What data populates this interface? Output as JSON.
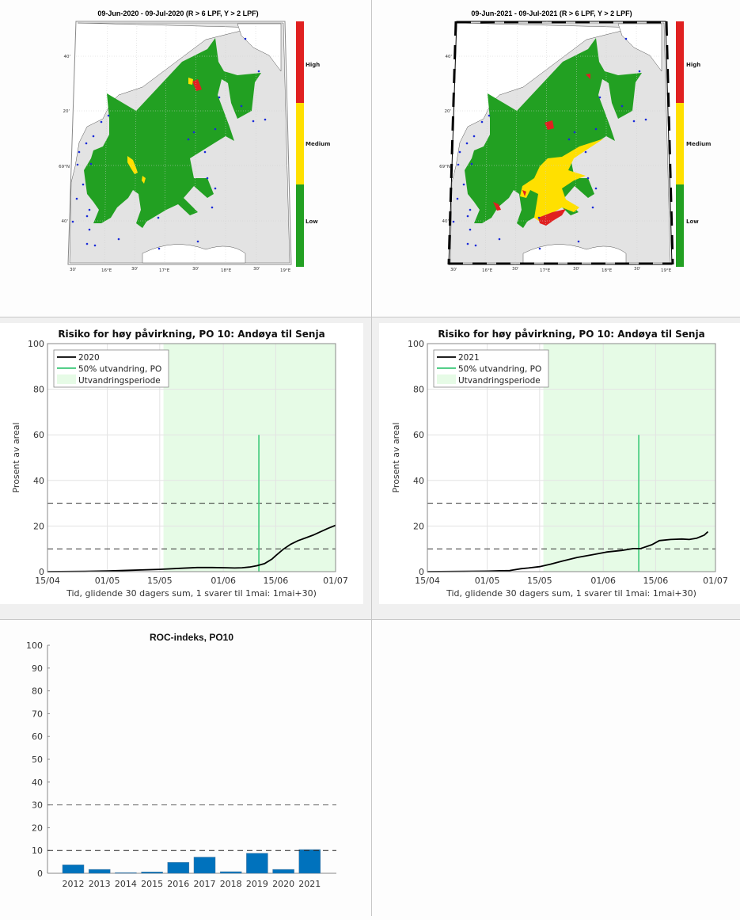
{
  "maps": [
    {
      "title": "09-Jun-2020  - 09-Jul-2020  (R > 6 LPF, Y > 2 LPF)",
      "colorbar": {
        "labels": [
          "High",
          "Medium",
          "Low"
        ],
        "colors": [
          "#e02020",
          "#ffe000",
          "#22a022"
        ]
      },
      "lon_ticks": [
        "30'",
        "16°E",
        "30'",
        "17°E",
        "30'",
        "18°E",
        "30'",
        "19°E"
      ],
      "lat_ticks": [
        "40'",
        "20'",
        "69°N",
        "40'"
      ],
      "frame_style": "thin"
    },
    {
      "title": "09-Jun-2021  - 09-Jul-2021  (R > 6 LPF, Y > 2 LPF)",
      "colorbar": {
        "labels": [
          "High",
          "Medium",
          "Low"
        ],
        "colors": [
          "#e02020",
          "#ffe000",
          "#22a022"
        ]
      },
      "lon_ticks": [
        "30'",
        "16°E",
        "30'",
        "17°E",
        "30'",
        "18°E",
        "30'",
        "19°E"
      ],
      "lat_ticks": [
        "40'",
        "20'",
        "69°N",
        "40'"
      ],
      "frame_style": "checkered"
    }
  ],
  "chart_data": [
    {
      "type": "line",
      "title": "Risiko for høy påvirkning, PO 10: Andøya til Senja",
      "xlabel": "Tid, glidende 30 dagers sum, 1 svarer til 1mai: 1mai+30)",
      "ylabel": "Prosent av areal",
      "ylim": [
        0,
        100
      ],
      "yticks": [
        "0",
        "20",
        "40",
        "60",
        "80",
        "100"
      ],
      "xticks": [
        "15/04",
        "01/05",
        "15/05",
        "01/06",
        "15/06",
        "01/07"
      ],
      "legend": [
        "2020",
        "50% utvandring, PO",
        "Utvandringsperiode"
      ],
      "grid": true,
      "series": [
        {
          "name": "2020",
          "color": "#000000",
          "x": [
            0,
            10,
            16,
            22,
            30,
            36,
            40,
            44,
            48,
            50,
            52,
            54,
            56,
            58,
            60,
            61,
            63,
            65,
            67,
            69,
            71,
            73,
            75,
            77
          ],
          "y": [
            0,
            0.1,
            0.3,
            0.6,
            1.0,
            1.5,
            1.8,
            1.8,
            1.7,
            1.6,
            1.7,
            2.0,
            2.6,
            3.5,
            5.5,
            7.0,
            9.8,
            12.0,
            13.6,
            14.8,
            16.0,
            17.5,
            19.0,
            20.3
          ]
        }
      ],
      "vertical_line": {
        "name": "50% utvandring, PO",
        "x_day": 56.5,
        "y_top": 60,
        "color": "#3cc878"
      },
      "shaded_region": {
        "name": "Utvandringsperiode",
        "x_start_day": 31,
        "x_end_day": 77,
        "color": "#e6fbe6"
      },
      "hlines": [
        10,
        30
      ]
    },
    {
      "type": "line",
      "title": "Risiko for høy påvirkning, PO 10: Andøya til Senja",
      "xlabel": "Tid, glidende 30 dagers sum, 1 svarer til 1mai: 1mai+30)",
      "ylabel": "Prosent av areal",
      "ylim": [
        0,
        100
      ],
      "yticks": [
        "0",
        "20",
        "40",
        "60",
        "80",
        "100"
      ],
      "xticks": [
        "15/04",
        "01/05",
        "15/05",
        "01/06",
        "15/06",
        "01/07"
      ],
      "legend": [
        "2021",
        "50% utvandring, PO",
        "Utvandringsperiode"
      ],
      "grid": true,
      "series": [
        {
          "name": "2021",
          "color": "#000000",
          "x": [
            0,
            10,
            16,
            22,
            25,
            27,
            30,
            33,
            36,
            40,
            44,
            48,
            52,
            55,
            57,
            60,
            62,
            65,
            68,
            70,
            72,
            74,
            75
          ],
          "y": [
            0,
            0.1,
            0.2,
            0.5,
            1.3,
            1.6,
            2.2,
            3.3,
            4.6,
            6.2,
            7.4,
            8.6,
            9.3,
            10.1,
            10.1,
            11.8,
            13.6,
            14.1,
            14.3,
            14.1,
            14.7,
            16.0,
            17.5
          ]
        }
      ],
      "vertical_line": {
        "name": "50% utvandring, PO",
        "x_day": 56.5,
        "y_top": 60,
        "color": "#3cc878"
      },
      "shaded_region": {
        "name": "Utvandringsperiode",
        "x_start_day": 31,
        "x_end_day": 77,
        "color": "#e6fbe6"
      },
      "hlines": [
        10,
        30
      ]
    },
    {
      "type": "bar",
      "title": "ROC-indeks, PO10",
      "categories": [
        "2012",
        "2013",
        "2014",
        "2015",
        "2016",
        "2017",
        "2018",
        "2019",
        "2020",
        "2021"
      ],
      "values": [
        3.7,
        1.7,
        0.3,
        0.6,
        4.8,
        7.1,
        0.7,
        8.8,
        1.7,
        10.4
      ],
      "ylim": [
        0,
        100
      ],
      "yticks": [
        "0",
        "10",
        "20",
        "30",
        "40",
        "50",
        "60",
        "70",
        "80",
        "90",
        "100"
      ],
      "xlabel": "",
      "ylabel": "",
      "bar_color": "#0072bd",
      "hlines": [
        10,
        30
      ],
      "grid": false
    }
  ]
}
